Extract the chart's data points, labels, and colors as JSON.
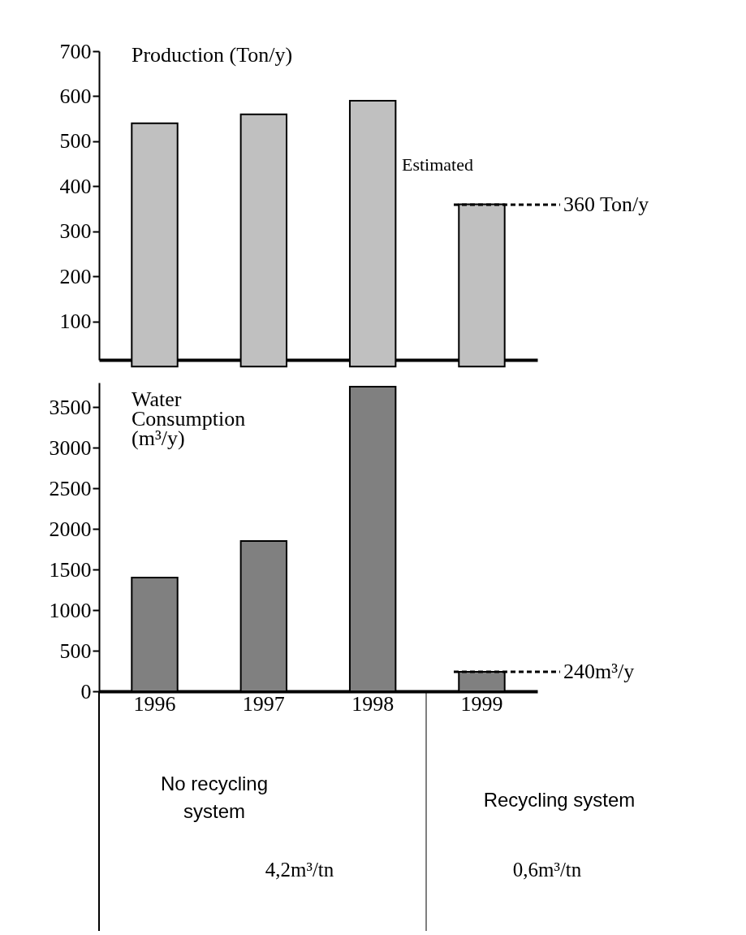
{
  "chart_data": [
    {
      "type": "bar",
      "title": "Production (Ton/y)",
      "categories": [
        "1996",
        "1997",
        "1998",
        "1999"
      ],
      "values": [
        540,
        560,
        590,
        360
      ],
      "color": "#c0c0c0",
      "ylim": [
        15,
        700
      ],
      "yticks": [
        100,
        200,
        300,
        400,
        500,
        600,
        700
      ],
      "grid": false,
      "tick_labels": "y",
      "annotations": [
        "Estimated",
        "360 Ton/y"
      ]
    },
    {
      "type": "bar",
      "title": "Water\nConsumption\n(m³/y)",
      "categories": [
        "1996",
        "1997",
        "1998",
        "1999"
      ],
      "values": [
        1400,
        1850,
        3750,
        240
      ],
      "color": "#808080",
      "ylim": [
        0,
        3800
      ],
      "yticks": [
        0,
        500,
        1000,
        1500,
        2000,
        2500,
        3000,
        3500
      ],
      "grid": false,
      "annotations": [
        "240m³/y",
        "No recycling\nsystem",
        "Recycling system",
        "4,2m³/tn",
        "0,6m³/tn"
      ]
    }
  ]
}
